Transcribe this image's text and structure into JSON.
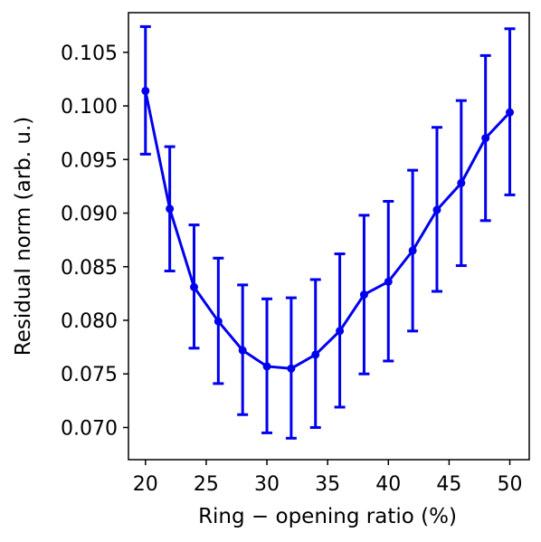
{
  "chart_data": {
    "type": "line",
    "title": "",
    "xlabel": "Ring − opening ratio (%)",
    "ylabel": "Residual norm (arb. u.)",
    "xlim": [
      18.6,
      51.6
    ],
    "ylim": [
      0.067,
      0.1087
    ],
    "xticks": [
      20,
      25,
      30,
      35,
      40,
      45,
      50
    ],
    "xtick_labels": [
      "20",
      "25",
      "30",
      "35",
      "40",
      "45",
      "50"
    ],
    "yticks": [
      0.07,
      0.075,
      0.08,
      0.085,
      0.09,
      0.095,
      0.1,
      0.105
    ],
    "ytick_labels": [
      "0.070",
      "0.075",
      "0.080",
      "0.085",
      "0.090",
      "0.095",
      "0.100",
      "0.105"
    ],
    "grid": false,
    "series": [
      {
        "color": "#0000ee",
        "marker": "circle",
        "x": [
          20,
          22,
          24,
          26,
          28,
          30,
          32,
          34,
          36,
          38,
          40,
          42,
          44,
          46,
          48,
          50
        ],
        "y": [
          0.1014,
          0.0904,
          0.0831,
          0.0799,
          0.0772,
          0.0757,
          0.0755,
          0.0768,
          0.079,
          0.0824,
          0.0836,
          0.0865,
          0.0903,
          0.0928,
          0.097,
          0.0994
        ],
        "error_low": [
          0.0955,
          0.0846,
          0.0774,
          0.0741,
          0.0712,
          0.0695,
          0.069,
          0.07,
          0.0719,
          0.075,
          0.0762,
          0.079,
          0.0827,
          0.0851,
          0.0893,
          0.0917
        ],
        "error_high": [
          0.1074,
          0.0962,
          0.0889,
          0.0858,
          0.0833,
          0.082,
          0.0821,
          0.0838,
          0.0862,
          0.0898,
          0.0911,
          0.094,
          0.098,
          0.1005,
          0.1047,
          0.1072
        ]
      }
    ]
  }
}
